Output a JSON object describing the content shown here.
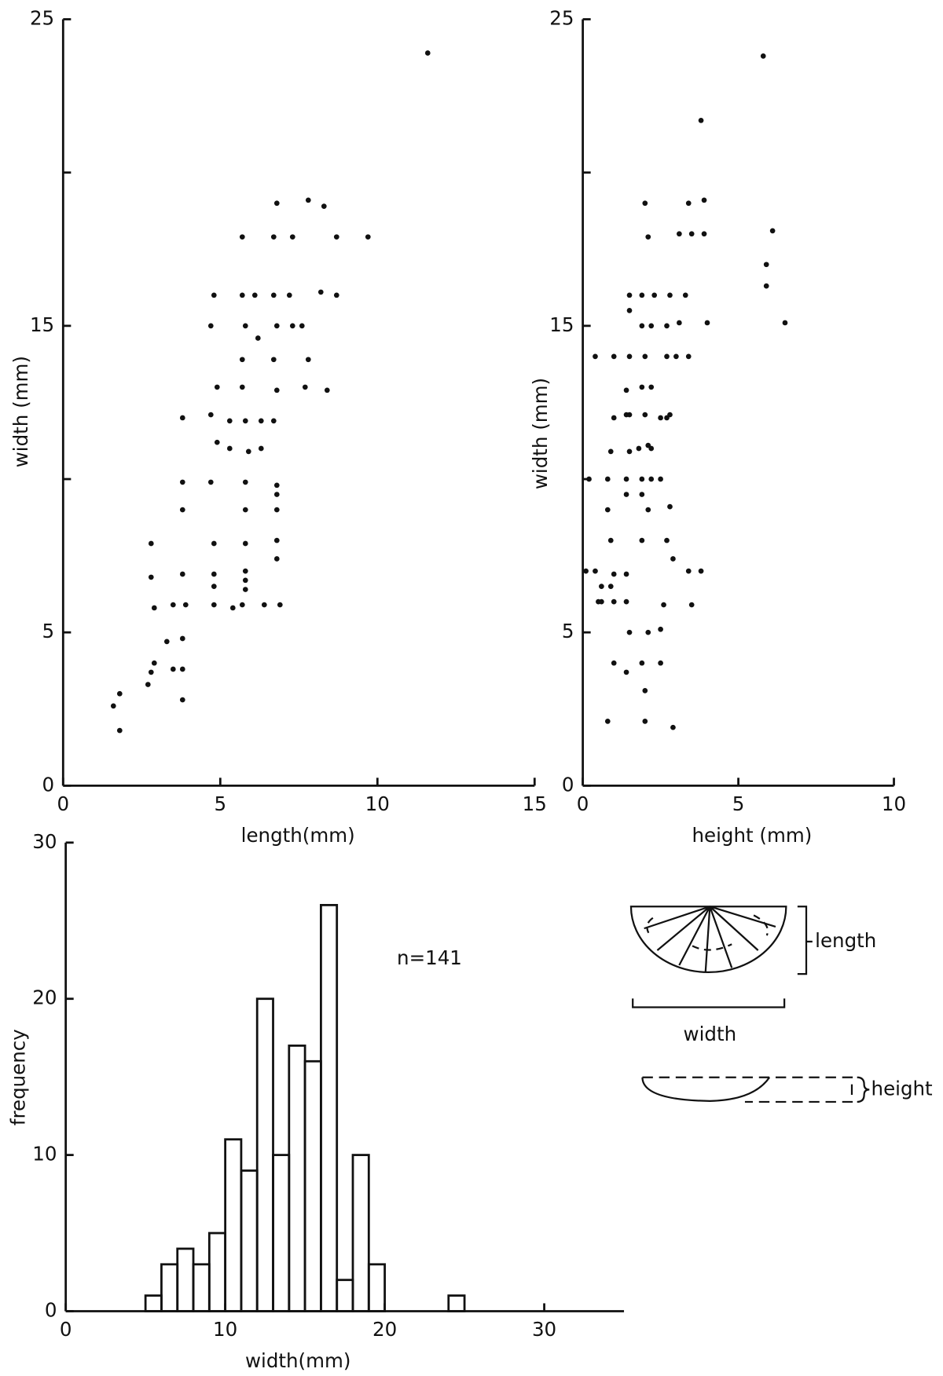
{
  "chart_data": [
    {
      "type": "scatter",
      "x_label": "length(mm)",
      "y_label": "width (mm)",
      "color": "#111111",
      "x": [
        11.6,
        6.8,
        7.8,
        8.3,
        5.7,
        6.7,
        7.3,
        8.7,
        9.7,
        4.8,
        5.7,
        6.1,
        6.7,
        7.2,
        8.2,
        8.7,
        4.7,
        5.8,
        6.2,
        6.8,
        7.3,
        7.6,
        5.7,
        6.7,
        7.8,
        4.9,
        5.7,
        6.8,
        7.7,
        8.4,
        3.8,
        4.7,
        5.3,
        5.8,
        6.3,
        6.7,
        4.9,
        5.3,
        5.9,
        6.3,
        3.8,
        4.7,
        5.8,
        6.8,
        6.8,
        3.8,
        5.8,
        6.8,
        2.8,
        4.8,
        5.8,
        6.8,
        6.8,
        2.8,
        3.8,
        4.8,
        5.8,
        5.8,
        4.8,
        5.8,
        2.9,
        3.5,
        3.9,
        4.8,
        5.4,
        5.7,
        6.4,
        6.9,
        3.3,
        3.8,
        2.9,
        2.8,
        3.5,
        3.8,
        2.7,
        1.8,
        1.6,
        3.8,
        1.8
      ],
      "y": [
        23.9,
        19.0,
        19.1,
        18.9,
        17.9,
        17.9,
        17.9,
        17.9,
        17.9,
        16.0,
        16.0,
        16.0,
        16.0,
        16.0,
        16.1,
        16.0,
        15.0,
        15.0,
        14.6,
        15.0,
        15.0,
        15.0,
        13.9,
        13.9,
        13.9,
        13.0,
        13.0,
        12.9,
        13.0,
        12.9,
        12.0,
        12.1,
        11.9,
        11.9,
        11.9,
        11.9,
        11.2,
        11.0,
        10.9,
        11.0,
        9.9,
        9.9,
        9.9,
        9.8,
        9.5,
        9.0,
        9.0,
        9.0,
        7.9,
        7.9,
        7.9,
        8.0,
        7.4,
        6.8,
        6.9,
        6.9,
        7.0,
        6.7,
        6.5,
        6.4,
        5.8,
        5.9,
        5.9,
        5.9,
        5.8,
        5.9,
        5.9,
        5.9,
        4.7,
        4.8,
        4.0,
        3.7,
        3.8,
        3.8,
        3.3,
        3.0,
        2.6,
        2.8,
        1.8
      ],
      "xlim": [
        0,
        15
      ],
      "ylim": [
        0,
        25
      ],
      "xticks": [
        0,
        5,
        10,
        15
      ],
      "yticks": [
        0,
        5,
        15,
        25
      ],
      "minor_yticks": [
        10,
        20
      ]
    },
    {
      "type": "scatter",
      "x_label": "height (mm)",
      "y_label": "width (mm)",
      "color": "#111111",
      "x": [
        5.8,
        3.8,
        2.0,
        3.4,
        3.9,
        2.1,
        3.1,
        3.5,
        3.9,
        6.1,
        5.9,
        5.9,
        1.5,
        1.9,
        2.3,
        2.8,
        3.3,
        1.5,
        1.9,
        2.2,
        2.7,
        3.1,
        4.0,
        6.5,
        0.4,
        1.0,
        1.5,
        2.0,
        2.7,
        3.0,
        3.4,
        1.4,
        1.9,
        2.2,
        1.0,
        1.4,
        1.5,
        2.0,
        2.5,
        2.7,
        2.8,
        0.9,
        1.5,
        1.8,
        2.1,
        2.2,
        0.2,
        0.8,
        1.4,
        1.9,
        2.2,
        2.5,
        1.4,
        1.9,
        0.8,
        2.1,
        2.8,
        0.9,
        1.9,
        2.7,
        2.9,
        0.1,
        0.4,
        1.0,
        1.4,
        3.4,
        3.8,
        0.6,
        0.9,
        0.5,
        0.6,
        1.0,
        1.4,
        2.6,
        3.5,
        1.5,
        2.1,
        2.5,
        1.0,
        1.4,
        1.9,
        2.5,
        2.0,
        0.8,
        2.0,
        2.9
      ],
      "y": [
        23.8,
        21.7,
        19.0,
        19.0,
        19.1,
        17.9,
        18.0,
        18.0,
        18.0,
        18.1,
        17.0,
        16.3,
        16.0,
        16.0,
        16.0,
        16.0,
        16.0,
        15.5,
        15.0,
        15.0,
        15.0,
        15.1,
        15.1,
        15.1,
        14.0,
        14.0,
        14.0,
        14.0,
        14.0,
        14.0,
        14.0,
        12.9,
        13.0,
        13.0,
        12.0,
        12.1,
        12.1,
        12.1,
        12.0,
        12.0,
        12.1,
        10.9,
        10.9,
        11.0,
        11.1,
        11.0,
        10.0,
        10.0,
        10.0,
        10.0,
        10.0,
        10.0,
        9.5,
        9.5,
        9.0,
        9.0,
        9.1,
        8.0,
        8.0,
        8.0,
        7.4,
        7.0,
        7.0,
        6.9,
        6.9,
        7.0,
        7.0,
        6.5,
        6.5,
        6.0,
        6.0,
        6.0,
        6.0,
        5.9,
        5.9,
        5.0,
        5.0,
        5.1,
        4.0,
        3.7,
        4.0,
        4.0,
        3.1,
        2.1,
        2.1,
        1.9
      ],
      "xlim": [
        0,
        10
      ],
      "ylim": [
        0,
        25
      ],
      "xticks": [
        0,
        5,
        10
      ],
      "yticks": [
        0,
        5,
        15,
        25
      ],
      "minor_yticks": [
        10,
        20
      ]
    },
    {
      "type": "histogram",
      "x_label": "width(mm)",
      "y_label": "frequency",
      "annotation": "n=141",
      "color": "#111111",
      "bins": [
        5,
        6,
        7,
        8,
        9,
        10,
        11,
        12,
        13,
        14,
        15,
        16,
        17,
        18,
        19,
        20,
        21,
        22,
        23,
        24,
        25
      ],
      "values": [
        1,
        3,
        4,
        3,
        5,
        11,
        9,
        20,
        10,
        17,
        16,
        26,
        2,
        10,
        3,
        0,
        0,
        0,
        0,
        1
      ],
      "xlim": [
        0,
        35
      ],
      "ylim": [
        0,
        30
      ],
      "xticks": [
        0,
        10,
        20,
        30
      ],
      "yticks": [
        0,
        10,
        20,
        30
      ]
    }
  ],
  "diagram": {
    "length_label": "length",
    "width_label": "width",
    "height_label": "height"
  }
}
